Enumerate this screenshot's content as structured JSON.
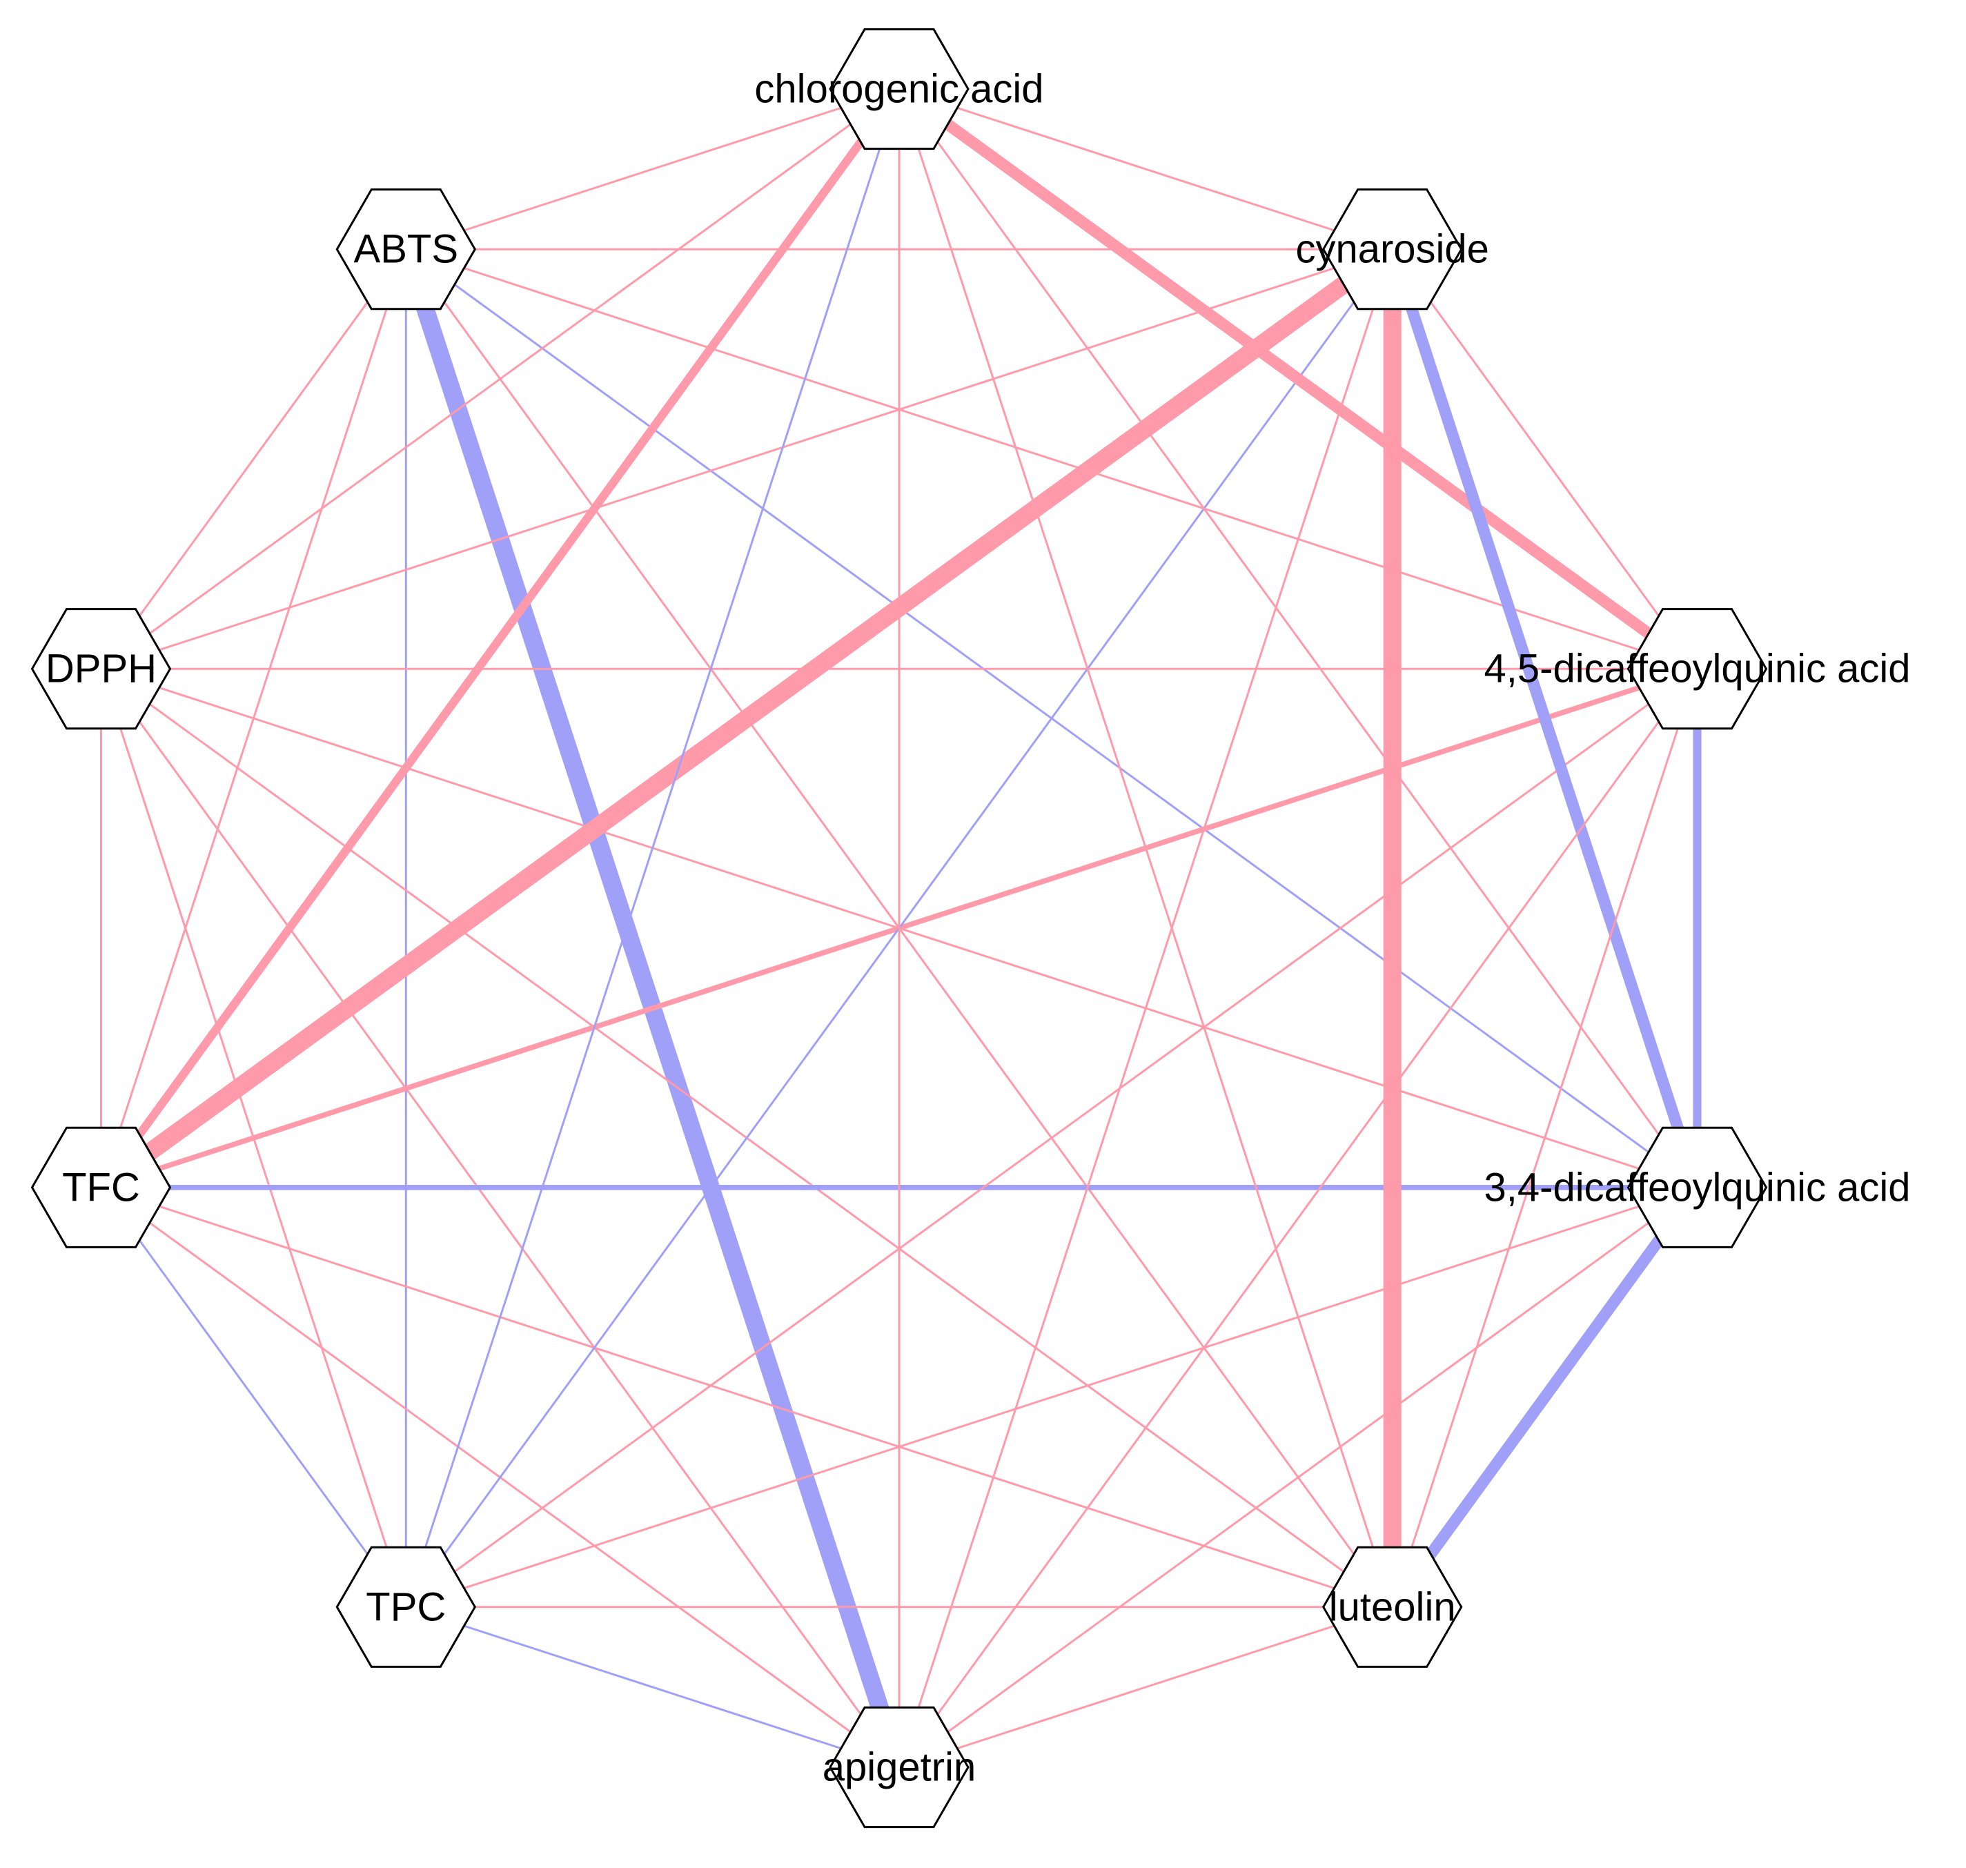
{
  "colors": {
    "positive": "#ff9aaa",
    "negative": "#a0a0f8",
    "node_fill": "#ffffff",
    "node_stroke": "#000000"
  },
  "nodes": [
    {
      "id": "chlorogenic",
      "label": "chlorogenic acid"
    },
    {
      "id": "cynaroside",
      "label": "cynaroside"
    },
    {
      "id": "dcq45",
      "label": "4,5-dicaffeoylquinic acid"
    },
    {
      "id": "dcq34",
      "label": "3,4-dicaffeoylquinic acid"
    },
    {
      "id": "luteolin",
      "label": "luteolin"
    },
    {
      "id": "apigetrin",
      "label": "apigetrin"
    },
    {
      "id": "TPC",
      "label": "TPC"
    },
    {
      "id": "TFC",
      "label": "TFC"
    },
    {
      "id": "DPPH",
      "label": "DPPH"
    },
    {
      "id": "ABTS",
      "label": "ABTS"
    }
  ],
  "edges": [
    {
      "source": "ABTS",
      "target": "chlorogenic",
      "sign": "positive",
      "weight": 1
    },
    {
      "source": "ABTS",
      "target": "cynaroside",
      "sign": "positive",
      "weight": 1
    },
    {
      "source": "ABTS",
      "target": "dcq45",
      "sign": "positive",
      "weight": 1
    },
    {
      "source": "ABTS",
      "target": "dcq34",
      "sign": "negative",
      "weight": 1
    },
    {
      "source": "ABTS",
      "target": "luteolin",
      "sign": "positive",
      "weight": 1
    },
    {
      "source": "ABTS",
      "target": "apigetrin",
      "sign": "negative",
      "weight": 6
    },
    {
      "source": "ABTS",
      "target": "TPC",
      "sign": "negative",
      "weight": 1
    },
    {
      "source": "ABTS",
      "target": "TFC",
      "sign": "positive",
      "weight": 1
    },
    {
      "source": "ABTS",
      "target": "DPPH",
      "sign": "positive",
      "weight": 1
    },
    {
      "source": "DPPH",
      "target": "chlorogenic",
      "sign": "positive",
      "weight": 1
    },
    {
      "source": "DPPH",
      "target": "cynaroside",
      "sign": "positive",
      "weight": 1
    },
    {
      "source": "DPPH",
      "target": "dcq45",
      "sign": "positive",
      "weight": 1
    },
    {
      "source": "DPPH",
      "target": "dcq34",
      "sign": "positive",
      "weight": 1
    },
    {
      "source": "DPPH",
      "target": "luteolin",
      "sign": "positive",
      "weight": 1
    },
    {
      "source": "DPPH",
      "target": "apigetrin",
      "sign": "positive",
      "weight": 1
    },
    {
      "source": "DPPH",
      "target": "TPC",
      "sign": "positive",
      "weight": 1
    },
    {
      "source": "DPPH",
      "target": "TFC",
      "sign": "positive",
      "weight": 1
    },
    {
      "source": "TFC",
      "target": "chlorogenic",
      "sign": "positive",
      "weight": 3
    },
    {
      "source": "TFC",
      "target": "cynaroside",
      "sign": "positive",
      "weight": 6
    },
    {
      "source": "TFC",
      "target": "dcq45",
      "sign": "positive",
      "weight": 2
    },
    {
      "source": "TFC",
      "target": "dcq34",
      "sign": "negative",
      "weight": 2
    },
    {
      "source": "TFC",
      "target": "luteolin",
      "sign": "positive",
      "weight": 1
    },
    {
      "source": "TFC",
      "target": "apigetrin",
      "sign": "positive",
      "weight": 1
    },
    {
      "source": "TFC",
      "target": "TPC",
      "sign": "negative",
      "weight": 1
    },
    {
      "source": "TPC",
      "target": "chlorogenic",
      "sign": "negative",
      "weight": 1
    },
    {
      "source": "TPC",
      "target": "cynaroside",
      "sign": "negative",
      "weight": 1
    },
    {
      "source": "TPC",
      "target": "dcq45",
      "sign": "positive",
      "weight": 1
    },
    {
      "source": "TPC",
      "target": "dcq34",
      "sign": "positive",
      "weight": 1
    },
    {
      "source": "TPC",
      "target": "luteolin",
      "sign": "positive",
      "weight": 1
    },
    {
      "source": "TPC",
      "target": "apigetrin",
      "sign": "negative",
      "weight": 1
    },
    {
      "source": "chlorogenic",
      "target": "cynaroside",
      "sign": "positive",
      "weight": 1
    },
    {
      "source": "chlorogenic",
      "target": "dcq45",
      "sign": "positive",
      "weight": 4
    },
    {
      "source": "chlorogenic",
      "target": "dcq34",
      "sign": "positive",
      "weight": 1
    },
    {
      "source": "chlorogenic",
      "target": "luteolin",
      "sign": "positive",
      "weight": 1
    },
    {
      "source": "chlorogenic",
      "target": "apigetrin",
      "sign": "positive",
      "weight": 1
    },
    {
      "source": "cynaroside",
      "target": "dcq45",
      "sign": "positive",
      "weight": 1
    },
    {
      "source": "cynaroside",
      "target": "dcq34",
      "sign": "negative",
      "weight": 4
    },
    {
      "source": "cynaroside",
      "target": "luteolin",
      "sign": "positive",
      "weight": 6
    },
    {
      "source": "cynaroside",
      "target": "apigetrin",
      "sign": "positive",
      "weight": 1
    },
    {
      "source": "dcq45",
      "target": "dcq34",
      "sign": "negative",
      "weight": 3
    },
    {
      "source": "dcq45",
      "target": "luteolin",
      "sign": "positive",
      "weight": 1
    },
    {
      "source": "dcq45",
      "target": "apigetrin",
      "sign": "positive",
      "weight": 1
    },
    {
      "source": "dcq34",
      "target": "luteolin",
      "sign": "negative",
      "weight": 4
    },
    {
      "source": "dcq34",
      "target": "apigetrin",
      "sign": "positive",
      "weight": 1
    },
    {
      "source": "luteolin",
      "target": "apigetrin",
      "sign": "positive",
      "weight": 1
    }
  ]
}
